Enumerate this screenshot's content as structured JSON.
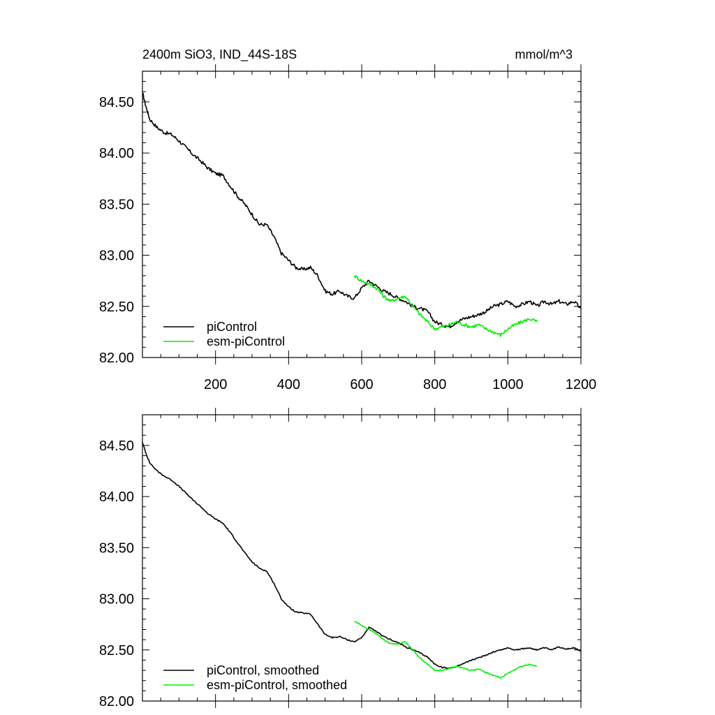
{
  "header": {
    "title": "2400m SiO3, IND_44S-18S",
    "units": "mmol/m^3"
  },
  "colors": {
    "picontrol": "#000000",
    "esm_picontrol": "#00ee00",
    "axis": "#000000",
    "background": "#ffffff"
  },
  "chart_data": [
    {
      "type": "line",
      "title": "2400m SiO3, IND_44S-18S",
      "units": "mmol/m^3",
      "xlim": [
        0,
        1200
      ],
      "ylim": [
        82.0,
        84.8
      ],
      "x_ticks": [
        200,
        400,
        600,
        800,
        1000,
        1200
      ],
      "x_tick_labels": [
        "200",
        "400",
        "600",
        "800",
        "1000",
        "1200"
      ],
      "y_ticks": [
        82.0,
        82.5,
        83.0,
        83.5,
        84.0,
        84.5
      ],
      "y_tick_labels": [
        "82.00",
        "82.50",
        "83.00",
        "83.50",
        "84.00",
        "84.50"
      ],
      "legend_position": "bottom-left",
      "series": [
        {
          "name": "piControl",
          "color": "#000000",
          "x": [
            0,
            10,
            20,
            40,
            60,
            80,
            100,
            120,
            140,
            160,
            180,
            200,
            220,
            240,
            260,
            280,
            300,
            320,
            340,
            360,
            380,
            400,
            420,
            440,
            460,
            480,
            500,
            520,
            540,
            560,
            580,
            600,
            620,
            640,
            660,
            680,
            700,
            720,
            740,
            760,
            780,
            800,
            820,
            840,
            860,
            880,
            900,
            920,
            940,
            960,
            980,
            1000,
            1020,
            1040,
            1060,
            1080,
            1100,
            1120,
            1140,
            1160,
            1180,
            1200
          ],
          "y": [
            84.59,
            84.45,
            84.33,
            84.25,
            84.2,
            84.18,
            84.12,
            84.05,
            83.98,
            83.92,
            83.85,
            83.8,
            83.78,
            83.68,
            83.58,
            83.5,
            83.4,
            83.3,
            83.3,
            83.18,
            83.02,
            82.95,
            82.88,
            82.86,
            82.88,
            82.8,
            82.65,
            82.62,
            82.65,
            82.6,
            82.58,
            82.68,
            82.75,
            82.7,
            82.65,
            82.62,
            82.58,
            82.55,
            82.5,
            82.48,
            82.45,
            82.35,
            82.32,
            82.3,
            82.35,
            82.38,
            82.4,
            82.42,
            82.45,
            82.5,
            82.52,
            82.55,
            82.5,
            82.52,
            82.55,
            82.5,
            82.55,
            82.52,
            82.55,
            82.52,
            82.55,
            82.48
          ]
        },
        {
          "name": "esm-piControl",
          "color": "#00ee00",
          "x": [
            580,
            600,
            620,
            640,
            660,
            680,
            700,
            720,
            740,
            760,
            780,
            800,
            820,
            840,
            860,
            880,
            900,
            920,
            940,
            960,
            980,
            1000,
            1020,
            1040,
            1060,
            1080
          ],
          "y": [
            82.8,
            82.75,
            82.72,
            82.68,
            82.6,
            82.55,
            82.58,
            82.6,
            82.5,
            82.42,
            82.35,
            82.28,
            82.3,
            82.32,
            82.35,
            82.32,
            82.3,
            82.32,
            82.28,
            82.25,
            82.22,
            82.28,
            82.32,
            82.35,
            82.38,
            82.35
          ]
        }
      ]
    },
    {
      "type": "line",
      "xlim": [
        0,
        1200
      ],
      "ylim": [
        82.0,
        84.8
      ],
      "x_ticks": [
        200,
        400,
        600,
        800,
        1000,
        1200
      ],
      "y_ticks": [
        82.0,
        82.5,
        83.0,
        83.5,
        84.0,
        84.5
      ],
      "y_tick_labels": [
        "82.00",
        "82.50",
        "83.00",
        "83.50",
        "84.00",
        "84.50"
      ],
      "legend_position": "bottom-left",
      "series": [
        {
          "name": "piControl, smoothed",
          "color": "#000000",
          "x": [
            0,
            10,
            20,
            40,
            60,
            80,
            100,
            120,
            140,
            160,
            180,
            200,
            220,
            240,
            260,
            280,
            300,
            320,
            340,
            360,
            380,
            400,
            420,
            440,
            460,
            480,
            500,
            520,
            540,
            560,
            580,
            600,
            620,
            640,
            660,
            680,
            700,
            720,
            740,
            760,
            780,
            800,
            820,
            840,
            860,
            880,
            900,
            920,
            940,
            960,
            980,
            1000,
            1020,
            1040,
            1060,
            1080,
            1100,
            1120,
            1140,
            1160,
            1180,
            1200
          ],
          "y": [
            84.53,
            84.42,
            84.33,
            84.25,
            84.2,
            84.16,
            84.1,
            84.03,
            83.96,
            83.9,
            83.83,
            83.78,
            83.74,
            83.65,
            83.55,
            83.45,
            83.36,
            83.3,
            83.27,
            83.15,
            83.0,
            82.92,
            82.87,
            82.86,
            82.85,
            82.75,
            82.65,
            82.62,
            82.63,
            82.6,
            82.58,
            82.62,
            82.72,
            82.68,
            82.63,
            82.6,
            82.57,
            82.53,
            82.5,
            82.47,
            82.43,
            82.36,
            82.33,
            82.32,
            82.34,
            82.37,
            82.4,
            82.42,
            82.45,
            82.48,
            82.5,
            82.52,
            82.5,
            82.51,
            82.52,
            82.5,
            82.52,
            82.5,
            82.53,
            82.51,
            82.52,
            82.49
          ]
        },
        {
          "name": "esm-piControl, smoothed",
          "color": "#00ee00",
          "x": [
            580,
            600,
            620,
            640,
            660,
            680,
            700,
            720,
            740,
            760,
            780,
            800,
            820,
            840,
            860,
            880,
            900,
            920,
            940,
            960,
            980,
            1000,
            1020,
            1040,
            1060,
            1080
          ],
          "y": [
            82.78,
            82.74,
            82.7,
            82.66,
            82.6,
            82.56,
            82.56,
            82.58,
            82.5,
            82.42,
            82.36,
            82.3,
            82.3,
            82.32,
            82.34,
            82.32,
            82.3,
            82.31,
            82.28,
            82.25,
            82.23,
            82.27,
            82.31,
            82.34,
            82.36,
            82.34
          ]
        }
      ]
    }
  ]
}
